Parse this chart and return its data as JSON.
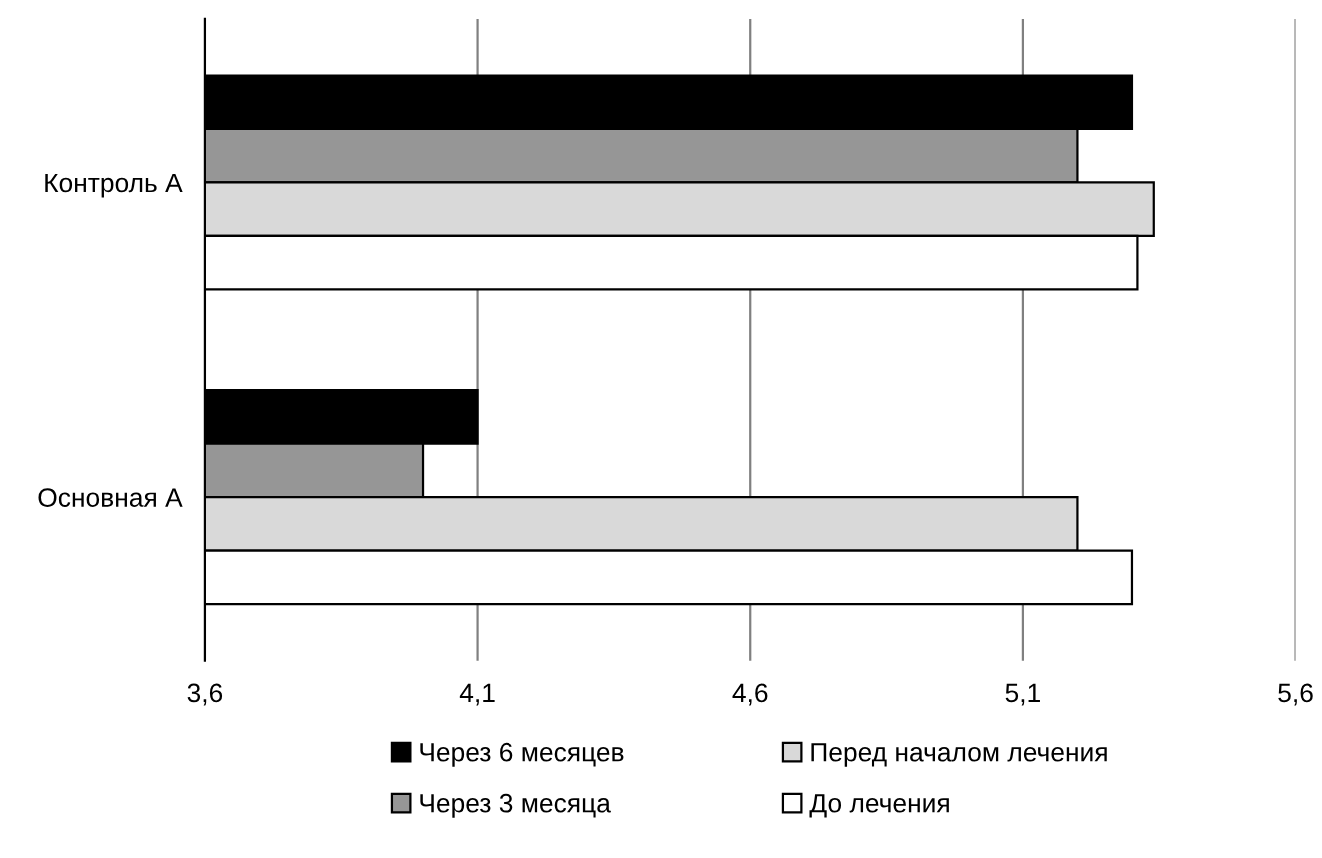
{
  "chart_data": {
    "type": "bar",
    "orientation": "horizontal",
    "categories": [
      "Контроль А",
      "Основная А"
    ],
    "series": [
      {
        "name": "Через 6 месяцев",
        "color": "#000000",
        "values": [
          5.3,
          4.1
        ]
      },
      {
        "name": "Через 3 месяца",
        "color": "#969696",
        "values": [
          5.2,
          4.0
        ]
      },
      {
        "name": "Перед началом лечения",
        "color": "#d9d9d9",
        "values": [
          5.34,
          5.2
        ]
      },
      {
        "name": "До лечения",
        "color": "#ffffff",
        "values": [
          5.31,
          5.3
        ]
      }
    ],
    "xlim": [
      3.6,
      5.6
    ],
    "xticks": [
      {
        "value": 3.6,
        "label": "3,6"
      },
      {
        "value": 4.1,
        "label": "4,1"
      },
      {
        "value": 4.6,
        "label": "4,6"
      },
      {
        "value": 5.1,
        "label": "5,1"
      },
      {
        "value": 5.6,
        "label": "5,6"
      }
    ],
    "grid": "x",
    "legend": "bottom"
  }
}
